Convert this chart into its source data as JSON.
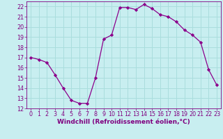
{
  "x": [
    0,
    1,
    2,
    3,
    4,
    5,
    6,
    7,
    8,
    9,
    10,
    11,
    12,
    13,
    14,
    15,
    16,
    17,
    18,
    19,
    20,
    21,
    22,
    23
  ],
  "y": [
    17.0,
    16.8,
    16.5,
    15.3,
    14.0,
    12.8,
    12.5,
    12.5,
    15.0,
    18.8,
    19.2,
    21.9,
    21.9,
    21.7,
    22.2,
    21.8,
    21.2,
    21.0,
    20.5,
    19.7,
    19.2,
    18.5,
    15.8,
    14.3
  ],
  "line_color": "#8B008B",
  "marker": "D",
  "marker_size": 2.2,
  "bg_color": "#c8eef0",
  "grid_color": "#aadddd",
  "xlabel": "Windchill (Refroidissement éolien,°C)",
  "xlim": [
    -0.5,
    23.5
  ],
  "ylim": [
    12,
    22.5
  ],
  "yticks": [
    12,
    13,
    14,
    15,
    16,
    17,
    18,
    19,
    20,
    21,
    22
  ],
  "xticks": [
    0,
    1,
    2,
    3,
    4,
    5,
    6,
    7,
    8,
    9,
    10,
    11,
    12,
    13,
    14,
    15,
    16,
    17,
    18,
    19,
    20,
    21,
    22,
    23
  ],
  "tick_color": "#800080",
  "label_color": "#800080",
  "xlabel_fontsize": 6.5,
  "tick_fontsize": 5.8,
  "linewidth": 0.9
}
